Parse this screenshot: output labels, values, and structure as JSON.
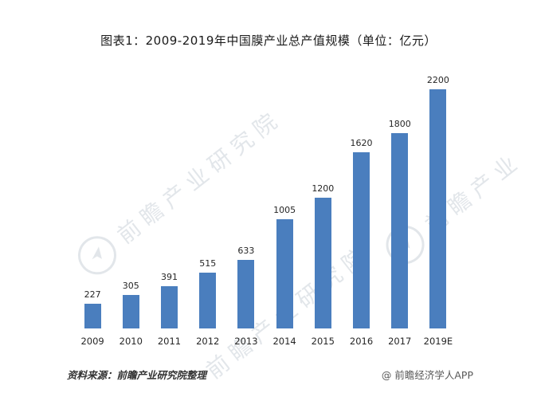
{
  "title": "图表1：2009-2019年中国膜产业总产值规模（单位：亿元）",
  "chart_data": {
    "type": "bar",
    "title": "图表1：2009-2019年中国膜产业总产值规模（单位：亿元）",
    "categories": [
      "2009",
      "2010",
      "2011",
      "2012",
      "2013",
      "2014",
      "2015",
      "2016",
      "2017",
      "2019E"
    ],
    "values": [
      227,
      305,
      391,
      515,
      633,
      1005,
      1200,
      1620,
      1800,
      2200
    ],
    "xlabel": "",
    "ylabel": "",
    "ylim": [
      0,
      2200
    ],
    "grid": false,
    "legend": "none",
    "bar_color": "#4a7ebe",
    "value_labels": true
  },
  "footer": {
    "source": "资料来源：前瞻产业研究院整理",
    "credit": "@ 前瞻经济学人APP"
  },
  "watermark": {
    "text": "前瞻产业研究院",
    "text_short": "前瞻产业"
  }
}
